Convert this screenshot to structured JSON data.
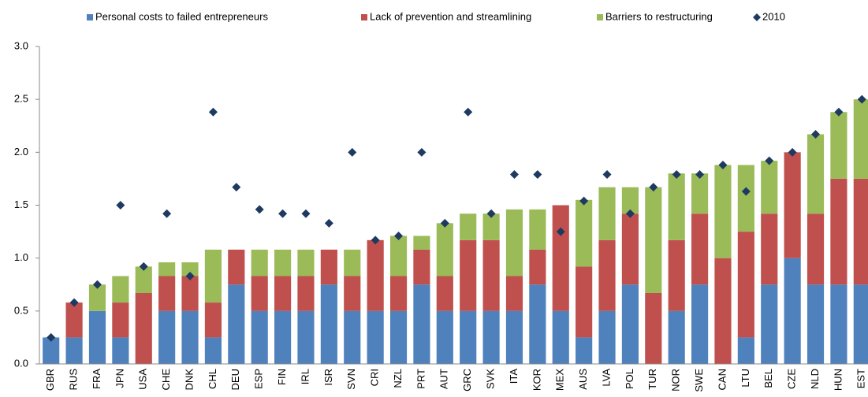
{
  "chart_data": {
    "type": "bar",
    "stacked": true,
    "categories": [
      "GBR",
      "RUS",
      "FRA",
      "JPN",
      "USA",
      "CHE",
      "DNK",
      "CHL",
      "DEU",
      "ESP",
      "FIN",
      "IRL",
      "ISR",
      "SVN",
      "CRI",
      "NZL",
      "PRT",
      "AUT",
      "GRC",
      "SVK",
      "ITA",
      "KOR",
      "MEX",
      "AUS",
      "LVA",
      "POL",
      "TUR",
      "NOR",
      "SWE",
      "CAN",
      "LTU",
      "BEL",
      "CZE",
      "NLD",
      "HUN",
      "EST"
    ],
    "series": [
      {
        "name": "Personal costs to failed entrepreneurs",
        "color": "#4f81bd",
        "type": "bar",
        "values": [
          0.25,
          0.25,
          0.5,
          0.25,
          0,
          0.5,
          0.5,
          0.25,
          0.75,
          0.5,
          0.5,
          0.5,
          0.75,
          0.5,
          0.5,
          0.5,
          0.75,
          0.5,
          0.5,
          0.5,
          0.5,
          0.75,
          0.5,
          0.25,
          0.5,
          0.75,
          0,
          0.5,
          0.75,
          0,
          0.25,
          0.75,
          1.0,
          0.75,
          0.75,
          0.75
        ]
      },
      {
        "name": "Lack of prevention and streamlining",
        "color": "#c0504d",
        "type": "bar",
        "values": [
          0,
          0.33,
          0,
          0.33,
          0.67,
          0.33,
          0.33,
          0.33,
          0.33,
          0.33,
          0.33,
          0.33,
          0.33,
          0.33,
          0.67,
          0.33,
          0.33,
          0.33,
          0.67,
          0.67,
          0.33,
          0.33,
          1.0,
          0.67,
          0.67,
          0.67,
          0.67,
          0.67,
          0.67,
          1.0,
          1.0,
          0.67,
          1.0,
          0.67,
          1.0,
          1.0
        ]
      },
      {
        "name": "Barriers to restructuring",
        "color": "#9bbb59",
        "type": "bar",
        "values": [
          0,
          0,
          0.25,
          0.25,
          0.25,
          0.13,
          0.13,
          0.5,
          0,
          0.25,
          0.25,
          0.25,
          0,
          0.25,
          0,
          0.38,
          0.13,
          0.5,
          0.25,
          0.25,
          0.63,
          0.38,
          0,
          0.63,
          0.5,
          0.25,
          1.0,
          0.63,
          0.38,
          0.88,
          0.63,
          0.5,
          0,
          0.75,
          0.63,
          0.75
        ]
      },
      {
        "name": "2010",
        "color": "#1f3a60",
        "type": "scatter",
        "values": [
          0.25,
          0.58,
          0.75,
          1.5,
          0.92,
          1.42,
          0.83,
          2.38,
          1.67,
          1.46,
          1.42,
          1.42,
          1.33,
          2.0,
          1.17,
          1.21,
          2.0,
          1.33,
          2.38,
          1.42,
          1.79,
          1.79,
          1.25,
          1.54,
          1.79,
          1.42,
          1.67,
          1.79,
          1.79,
          1.88,
          1.63,
          1.92,
          2.0,
          2.17,
          2.38,
          2.5
        ]
      }
    ],
    "ylim": [
      0,
      3
    ],
    "yticks": [
      {
        "value": 0,
        "label": "0.0"
      },
      0.5,
      {
        "value": 1,
        "label": "1.0"
      },
      1.5,
      {
        "value": 2,
        "label": "2.0"
      },
      2.5,
      {
        "value": 3,
        "label": "3.0"
      }
    ],
    "legend": "top"
  }
}
